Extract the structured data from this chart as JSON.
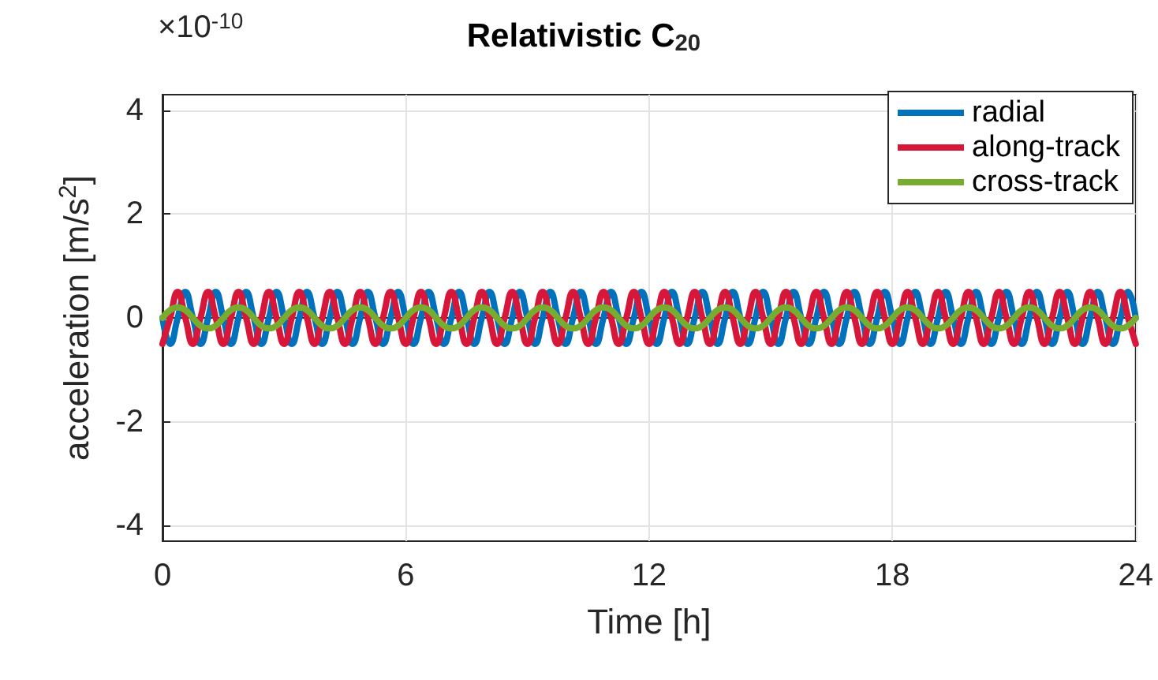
{
  "chart_data": {
    "type": "line",
    "title": "Relativistic C$_{20}$",
    "xlabel": "Time [h]",
    "ylabel": "acceleration [m/s$^{2}$]",
    "annotations": [
      "×10$^{-10}$"
    ],
    "x": [
      0,
      0.1875,
      0.375,
      0.5625,
      0.75,
      0.9375,
      1.125,
      1.3125,
      1.5,
      1.6875,
      1.875,
      2.0625,
      2.25,
      2.4375,
      2.625,
      2.8125,
      3,
      3.1875,
      3.375,
      3.5625,
      3.75,
      3.9375,
      4.125,
      4.3125,
      4.5,
      4.6875,
      4.875,
      5.0625,
      5.25,
      5.4375,
      5.625,
      5.8125,
      6,
      6.1875,
      6.375,
      6.5625,
      6.75,
      6.9375,
      7.125,
      7.3125,
      7.5,
      7.6875,
      7.875,
      8.0625,
      8.25,
      8.4375,
      8.625,
      8.8125,
      9,
      9.1875,
      9.375,
      9.5625,
      9.75,
      9.9375,
      10.125,
      10.3125,
      10.5,
      10.6875,
      10.875,
      11.0625,
      11.25,
      11.4375,
      11.625,
      11.8125,
      12,
      12.1875,
      12.375,
      12.5625,
      12.75,
      12.9375,
      13.125,
      13.3125,
      13.5,
      13.6875,
      13.875,
      14.0625,
      14.25,
      14.4375,
      14.625,
      14.8125,
      15,
      15.1875,
      15.375,
      15.5625,
      15.75,
      15.9375,
      16.125,
      16.3125,
      16.5,
      16.6875,
      16.875,
      17.0625,
      17.25,
      17.4375,
      17.625,
      17.8125,
      18,
      18.1875,
      18.375,
      18.5625,
      18.75,
      18.9375,
      19.125,
      19.3125,
      19.5,
      19.6875,
      19.875,
      20.0625,
      20.25,
      20.4375,
      20.625,
      20.8125,
      21,
      21.1875,
      21.375,
      21.5625,
      21.75,
      21.9375,
      22.125,
      22.3125,
      22.5,
      22.6875,
      22.875,
      23.0625,
      23.25,
      23.4375,
      23.625,
      23.8125,
      24
    ],
    "series": [
      {
        "name": "radial",
        "color": "#0072bd",
        "values": [
          0,
          -0.5,
          0,
          0.5,
          0,
          -0.5,
          0,
          0.5,
          0,
          -0.5,
          0,
          0.5,
          0,
          -0.5,
          0,
          0.5,
          0,
          -0.5,
          0,
          0.5,
          0,
          -0.5,
          0,
          0.5,
          0,
          -0.5,
          0,
          0.5,
          0,
          -0.5,
          0,
          0.5,
          0,
          -0.5,
          0,
          0.5,
          0,
          -0.5,
          0,
          0.5,
          0,
          -0.5,
          0,
          0.5,
          0,
          -0.5,
          0,
          0.5,
          0,
          -0.5,
          0,
          0.5,
          0,
          -0.5,
          0,
          0.5,
          0,
          -0.5,
          0,
          0.5,
          0,
          -0.5,
          0,
          0.5,
          0,
          -0.5,
          0,
          0.5,
          0,
          -0.5,
          0,
          0.5,
          0,
          -0.5,
          0,
          0.5,
          0,
          -0.5,
          0,
          0.5,
          0,
          -0.5,
          0,
          0.5,
          0,
          -0.5,
          0,
          0.5,
          0,
          -0.5,
          0,
          0.5,
          0,
          -0.5,
          0,
          0.5,
          0,
          -0.5,
          0,
          0.5,
          0,
          -0.5,
          0,
          0.5,
          0,
          -0.5,
          0,
          0.5,
          0,
          -0.5,
          0,
          0.5,
          0,
          -0.5,
          0,
          0.5,
          0,
          -0.5,
          0,
          0.5,
          0,
          -0.5,
          0,
          0.5,
          0,
          -0.5,
          0,
          0.5,
          0
        ]
      },
      {
        "name": "along-track",
        "color": "#d7173a",
        "values": [
          -0.5,
          0,
          0.5,
          0,
          -0.5,
          0,
          0.5,
          0,
          -0.5,
          0,
          0.5,
          0,
          -0.5,
          0,
          0.5,
          0,
          -0.5,
          0,
          0.5,
          0,
          -0.5,
          0,
          0.5,
          0,
          -0.5,
          0,
          0.5,
          0,
          -0.5,
          0,
          0.5,
          0,
          -0.5,
          0,
          0.5,
          0,
          -0.5,
          0,
          0.5,
          0,
          -0.5,
          0,
          0.5,
          0,
          -0.5,
          0,
          0.5,
          0,
          -0.5,
          0,
          0.5,
          0,
          -0.5,
          0,
          0.5,
          0,
          -0.5,
          0,
          0.5,
          0,
          -0.5,
          0,
          0.5,
          0,
          -0.5,
          0,
          0.5,
          0,
          -0.5,
          0,
          0.5,
          0,
          -0.5,
          0,
          0.5,
          0,
          -0.5,
          0,
          0.5,
          0,
          -0.5,
          0,
          0.5,
          0,
          -0.5,
          0,
          0.5,
          0,
          -0.5,
          0,
          0.5,
          0,
          -0.5,
          0,
          0.5,
          0,
          -0.5,
          0,
          0.5,
          0,
          -0.5,
          0,
          0.5,
          0,
          -0.5,
          0,
          0.5,
          0,
          -0.5,
          0,
          0.5,
          0,
          -0.5,
          0,
          0.5,
          0,
          -0.5,
          0,
          0.5,
          0,
          -0.5,
          0,
          0.5,
          0,
          -0.5,
          0,
          0.5,
          0,
          -0.5
        ]
      },
      {
        "name": "cross-track",
        "color": "#77ac30",
        "values": [
          0,
          0.15,
          0.2,
          0.15,
          0,
          -0.15,
          -0.2,
          -0.15,
          0,
          0.15,
          0.2,
          0.15,
          0,
          -0.15,
          -0.2,
          -0.15,
          0,
          0.15,
          0.2,
          0.15,
          0,
          -0.15,
          -0.2,
          -0.15,
          0,
          0.15,
          0.2,
          0.15,
          0,
          -0.15,
          -0.2,
          -0.15,
          0,
          0.15,
          0.2,
          0.15,
          0,
          -0.15,
          -0.2,
          -0.15,
          0,
          0.15,
          0.2,
          0.15,
          0,
          -0.15,
          -0.2,
          -0.15,
          0,
          0.15,
          0.2,
          0.15,
          0,
          -0.15,
          -0.2,
          -0.15,
          0,
          0.15,
          0.2,
          0.15,
          0,
          -0.15,
          -0.2,
          -0.15,
          0,
          0.15,
          0.2,
          0.15,
          0,
          -0.15,
          -0.2,
          -0.15,
          0,
          0.15,
          0.2,
          0.15,
          0,
          -0.15,
          -0.2,
          -0.15,
          0,
          0.15,
          0.2,
          0.15,
          0,
          -0.15,
          -0.2,
          -0.15,
          0,
          0.15,
          0.2,
          0.15,
          0,
          -0.15,
          -0.2,
          -0.15,
          0,
          0.15,
          0.2,
          0.15,
          0,
          -0.15,
          -0.2,
          -0.15,
          0,
          0.15,
          0.2,
          0.15,
          0,
          -0.15,
          -0.2,
          -0.15,
          0,
          0.15,
          0.2,
          0.15,
          0,
          -0.15,
          -0.2,
          -0.15,
          0,
          0.15,
          0.2,
          0.15,
          0,
          -0.15,
          -0.2,
          -0.15,
          0
        ]
      }
    ],
    "xlim": [
      0,
      24
    ],
    "xticks": [
      0,
      6,
      12,
      18,
      24
    ],
    "ylim": [
      -4.3,
      4.3
    ],
    "yticks": [
      -4,
      -2,
      0,
      2,
      4
    ],
    "grid": true,
    "legend": "top right",
    "marker": "none",
    "line_style": "solid"
  }
}
